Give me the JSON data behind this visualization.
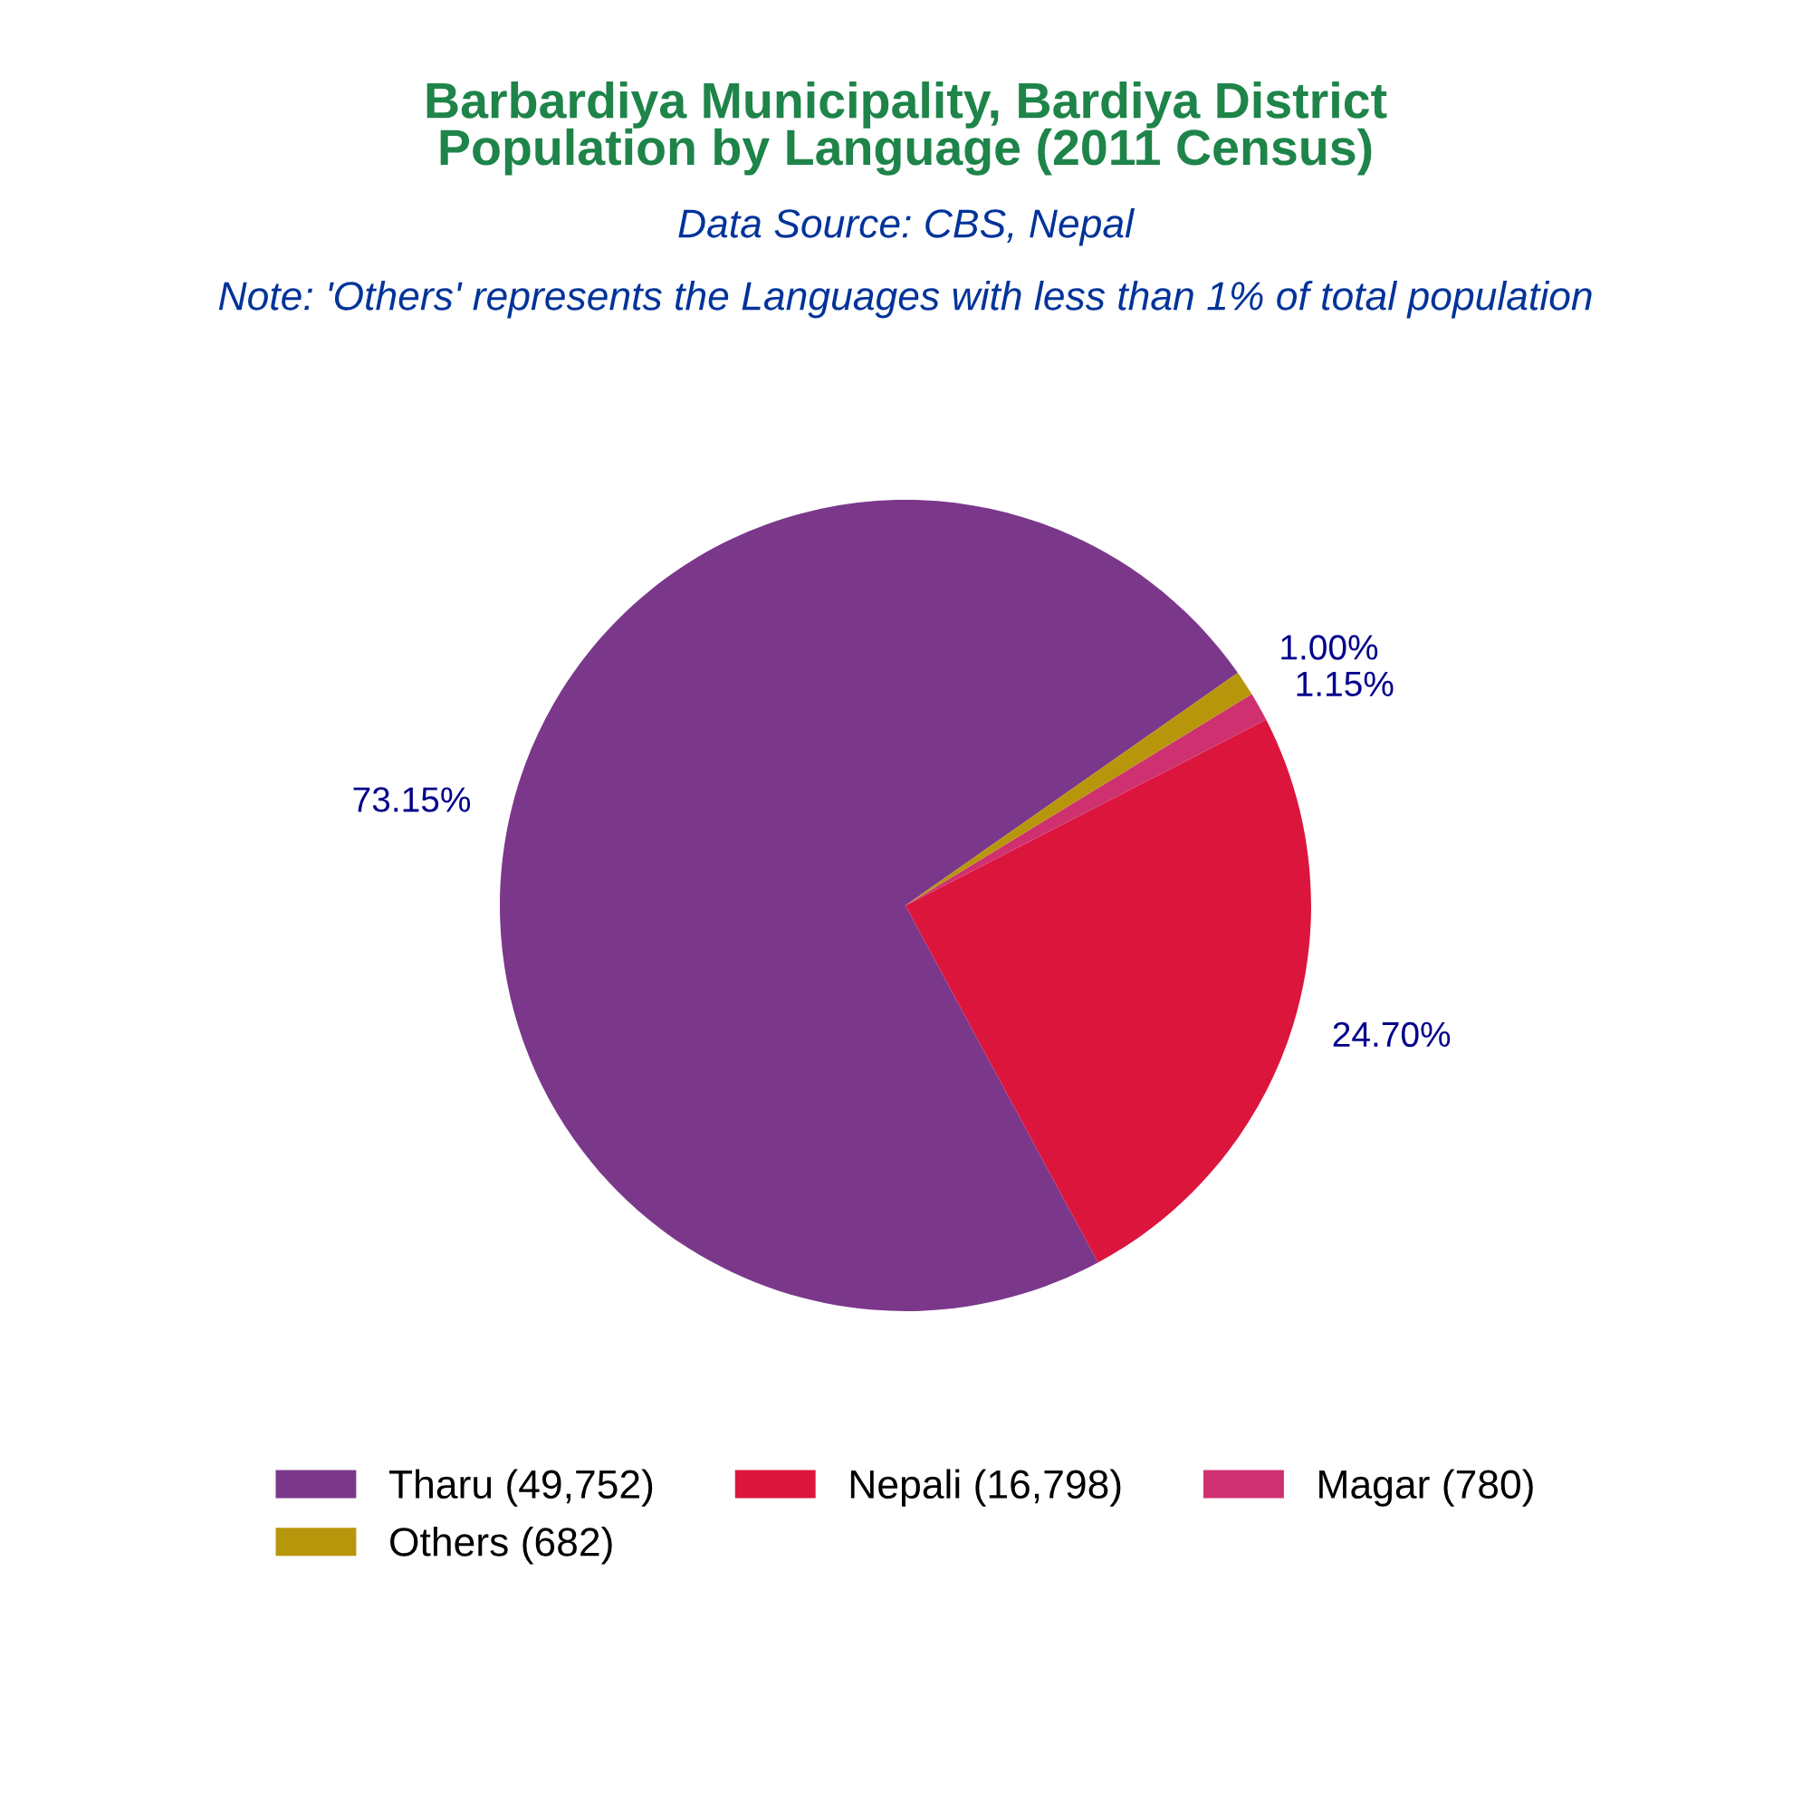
{
  "chart_data": {
    "type": "pie",
    "title": "Barbardiya Municipality, Bardiya District\nPopulation by Language (2011 Census)",
    "subtitle": "Data Source: CBS, Nepal",
    "annotations": [
      "Note: 'Others' represents the Languages with less than 1% of total population"
    ],
    "categories": [
      "Tharu (49,752)",
      "Nepali (16,798)",
      "Magar (780)",
      "Others (682)"
    ],
    "values": [
      73.15,
      24.7,
      1.15,
      1.0
    ],
    "colors": [
      "#7b388b",
      "#dc153d",
      "#cf3170",
      "#b8960c"
    ],
    "value_labels": [
      "73.15%",
      "24.70%",
      "1.15%",
      "1.00%"
    ],
    "legend": "bottom"
  }
}
